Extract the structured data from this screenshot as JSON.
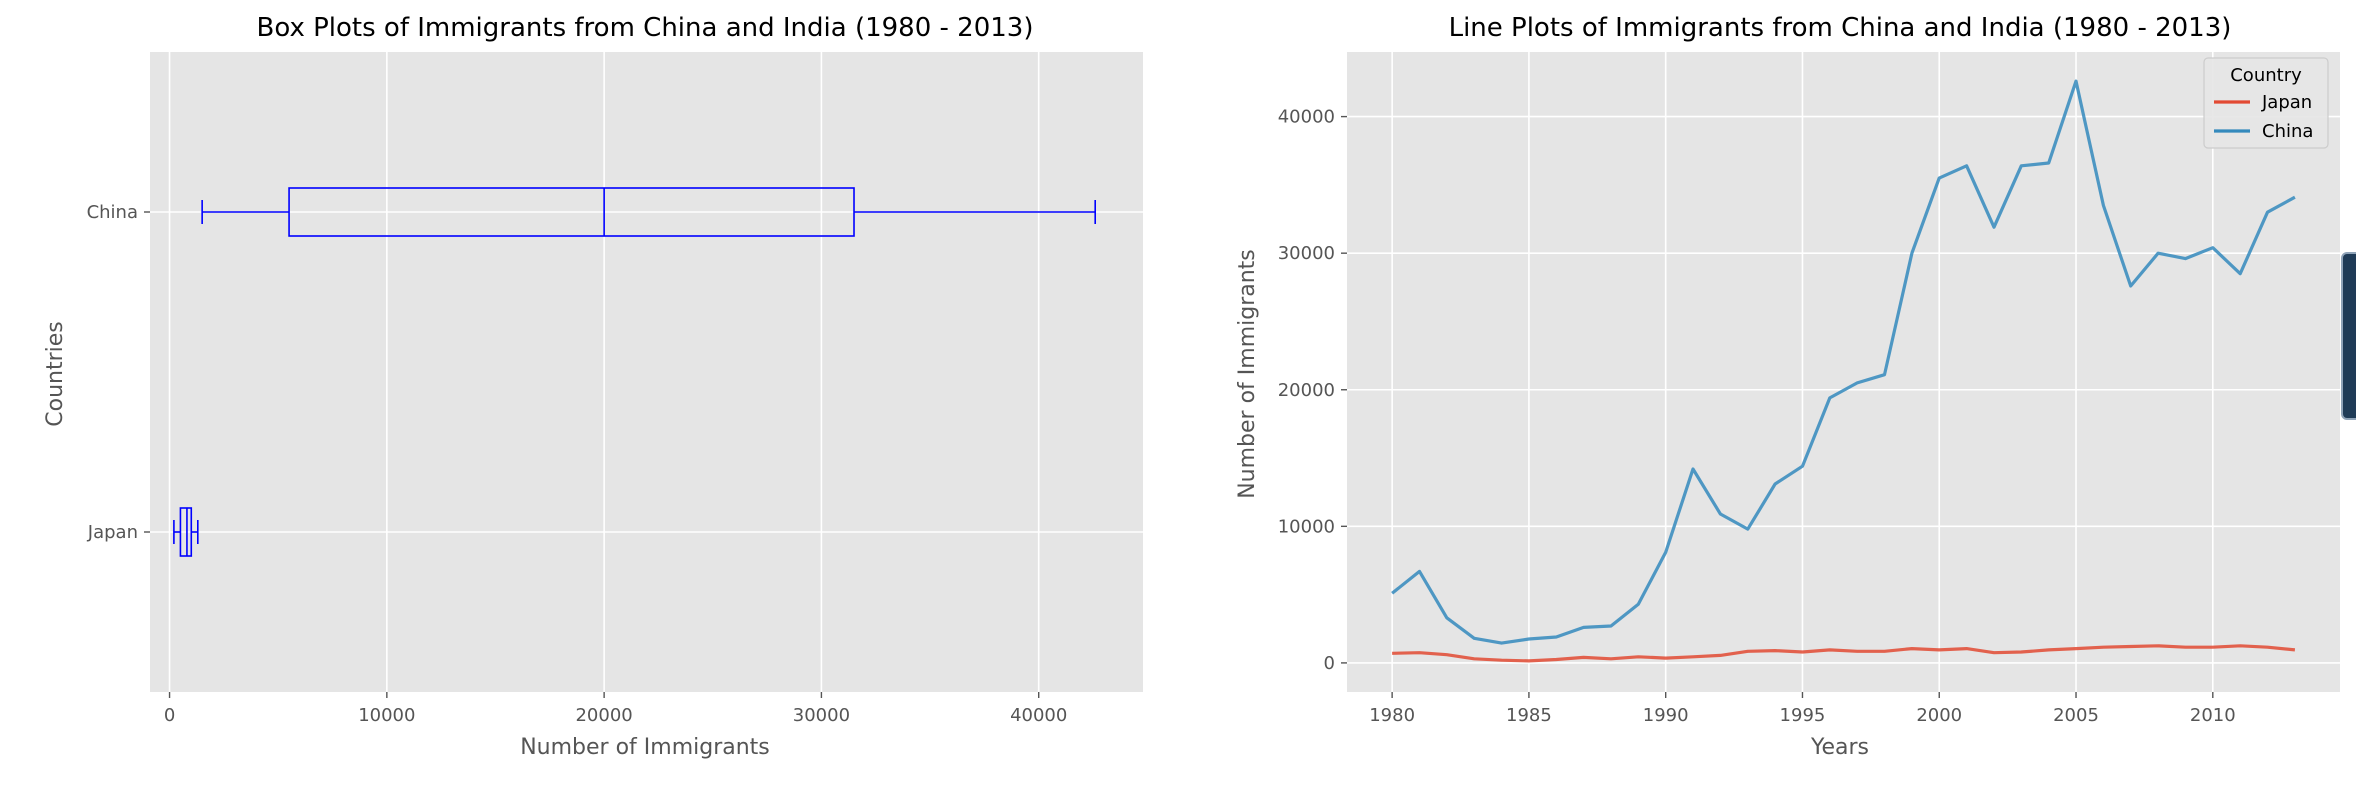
{
  "chart_data": [
    {
      "type": "box",
      "orientation": "horizontal",
      "title": "Box Plots of Immigrants from China and India (1980 - 2013)",
      "xlabel": "Number of Immigrants",
      "ylabel": "Countries",
      "categories": [
        "Japan",
        "China"
      ],
      "boxes": [
        {
          "category": "Japan",
          "whisker_low": 200,
          "q1": 500,
          "median": 800,
          "q3": 1000,
          "whisker_high": 1300
        },
        {
          "category": "China",
          "whisker_low": 1500,
          "q1": 5500,
          "median": 20000,
          "q3": 31500,
          "whisker_high": 42600
        }
      ],
      "xlim": [
        -900,
        44800
      ],
      "xticks": [
        0,
        10000,
        20000,
        30000,
        40000
      ],
      "xtick_labels": [
        "0",
        "10000",
        "20000",
        "30000",
        "40000"
      ],
      "box_color": "#0000ff",
      "grid": true
    },
    {
      "type": "line",
      "title": "Line Plots of Immigrants from China and India (1980 - 2013)",
      "xlabel": "Years",
      "ylabel": "Number of Immigrants",
      "x": [
        1980,
        1981,
        1982,
        1983,
        1984,
        1985,
        1986,
        1987,
        1988,
        1989,
        1990,
        1991,
        1992,
        1993,
        1994,
        1995,
        1996,
        1997,
        1998,
        1999,
        2000,
        2001,
        2002,
        2003,
        2004,
        2005,
        2006,
        2007,
        2008,
        2009,
        2010,
        2011,
        2012,
        2013
      ],
      "series": [
        {
          "name": "Japan",
          "color": "#e24a33",
          "values": [
            700,
            750,
            600,
            300,
            200,
            150,
            250,
            400,
            300,
            450,
            350,
            450,
            550,
            850,
            900,
            800,
            950,
            850,
            850,
            1050,
            950,
            1050,
            750,
            800,
            950,
            1050,
            1150,
            1200,
            1250,
            1150,
            1150,
            1250,
            1150,
            950
          ]
        },
        {
          "name": "China",
          "color": "#348abd",
          "values": [
            5100,
            6700,
            3300,
            1800,
            1450,
            1750,
            1900,
            2600,
            2700,
            4300,
            8100,
            14200,
            10900,
            9800,
            13100,
            14400,
            19400,
            20500,
            21100,
            30000,
            35500,
            36400,
            31900,
            36400,
            36600,
            42600,
            33500,
            27600,
            30000,
            29600,
            30400,
            28500,
            33000,
            34100
          ]
        }
      ],
      "xlim": [
        1978.35,
        2014.65
      ],
      "ylim": [
        -2130,
        44730
      ],
      "xticks": [
        1980,
        1985,
        1990,
        1995,
        2000,
        2005,
        2010
      ],
      "yticks": [
        0,
        10000,
        20000,
        30000,
        40000
      ],
      "xtick_labels": [
        "1980",
        "1985",
        "1990",
        "1995",
        "2000",
        "2005",
        "2010"
      ],
      "ytick_labels": [
        "0",
        "10000",
        "20000",
        "30000",
        "40000"
      ],
      "legend": {
        "title": "Country",
        "placement": "top-right",
        "entries": [
          "Japan",
          "China"
        ]
      },
      "grid": true
    }
  ]
}
